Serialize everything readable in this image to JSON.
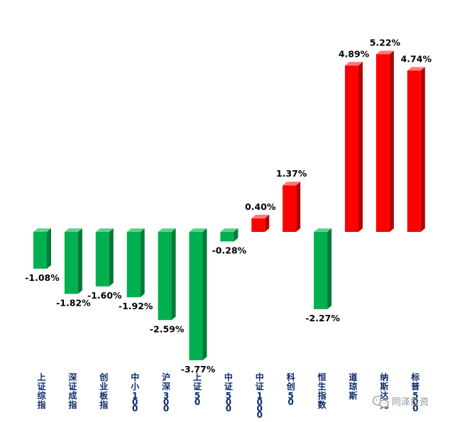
{
  "chart_data": {
    "type": "bar",
    "categories": [
      "上证综指",
      "深证成指",
      "创业板指",
      "中小100",
      "沪深300",
      "上证50",
      "中证500",
      "中证1000",
      "科创50",
      "恒生指数",
      "道琼斯",
      "纳斯达克",
      "标普500"
    ],
    "values": [
      -1.08,
      -1.82,
      -1.6,
      -1.92,
      -2.59,
      -3.77,
      -0.28,
      0.4,
      1.37,
      -2.27,
      4.89,
      5.22,
      4.74
    ],
    "value_labels": [
      "-1.08%",
      "-1.82%",
      "-1.60%",
      "-1.92%",
      "-2.59%",
      "-3.77%",
      "-0.28%",
      "0.40%",
      "1.37%",
      "-2.27%",
      "4.89%",
      "5.22%",
      "4.74%"
    ],
    "title": "",
    "xlabel": "",
    "ylabel": "",
    "grid": false,
    "legend": "none",
    "colors": {
      "positive": "#ff0000",
      "positive_side": "#b50000",
      "positive_top": "#ff7a7a",
      "negative": "#00b050",
      "negative_side": "#007a37",
      "negative_top": "#5fd08f",
      "category_text": "#0b2a6b"
    }
  },
  "watermark": {
    "text": "同泽投资",
    "icon": "wechat-icon"
  }
}
